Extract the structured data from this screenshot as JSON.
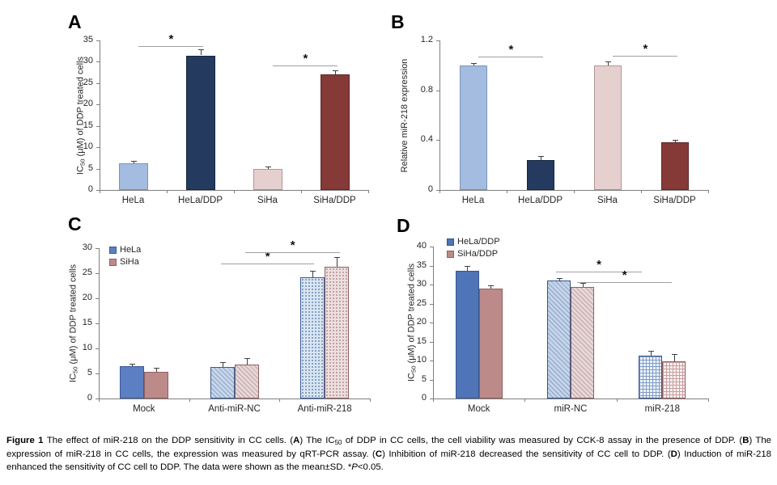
{
  "figure": {
    "caption_runs": [
      {
        "t": "Figure 1 ",
        "b": true
      },
      {
        "t": "The effect of miR-218 on the DDP sensitivity in CC cells. ("
      },
      {
        "t": "A",
        "b": true
      },
      {
        "t": ") The IC"
      },
      {
        "t": "50",
        "sub": true
      },
      {
        "t": " of DDP in CC cells, the cell viability was measured by CCK-8 assay in the presence of DDP. ("
      },
      {
        "t": "B",
        "b": true
      },
      {
        "t": ") The expression of miR-218 in CC cells, the expression was measured by qRT-PCR assay. ("
      },
      {
        "t": "C",
        "b": true
      },
      {
        "t": ") Inhibition of miR-218 decreased the sensitivity of CC cell to DDP. ("
      },
      {
        "t": "D",
        "b": true
      },
      {
        "t": ") Induction of miR-218 enhanced the sensitivity of CC cell to DDP. The data were shown as the mean±SD. "
      },
      {
        "t": "*"
      },
      {
        "t": "P",
        "i": true
      },
      {
        "t": "<0.05."
      }
    ]
  },
  "axis": {
    "line_color": "#7f7f7f",
    "text_color": "#262626",
    "error_color": "#3f3f3f",
    "sig_line_color": "#a0a0a0"
  },
  "chart_data": [
    {
      "panel": "A",
      "type": "bar",
      "ylabel_runs": [
        {
          "t": "IC"
        },
        {
          "t": "50",
          "sub": true
        },
        {
          "t": " (μM) of DDP treated cells"
        }
      ],
      "ylim": [
        0,
        35
      ],
      "yticks": [
        0,
        5,
        10,
        15,
        20,
        25,
        30,
        35
      ],
      "categories": [
        "HeLa",
        "HeLa/DDP",
        "SiHa",
        "SiHa/DDP"
      ],
      "series": [
        {
          "name": "",
          "values": [
            6.2,
            31.5,
            4.9,
            27.0
          ],
          "errors": [
            0.7,
            1.5,
            0.5,
            1.0
          ]
        }
      ],
      "category_styles": [
        {
          "solid": "#a3bce0",
          "border": "#7e94ba"
        },
        {
          "solid": "#243a5e",
          "border": "#17263f"
        },
        {
          "solid": "#e6cfcf",
          "border": "#b49595"
        },
        {
          "solid": "#853a38",
          "border": "#5e2826"
        }
      ],
      "patterns": [
        "solid",
        "solid",
        "solid",
        "solid"
      ],
      "significance": [
        {
          "x1": 0.146,
          "x2": 0.387,
          "y": 33.7,
          "label": "*"
        },
        {
          "x1": 0.646,
          "x2": 0.887,
          "y": 29.2,
          "label": "*"
        }
      ],
      "legend": false
    },
    {
      "panel": "B",
      "type": "bar",
      "ylabel_runs": [
        {
          "t": "Relative miR-218 expression"
        }
      ],
      "ylim": [
        0,
        1.2
      ],
      "yticks": [
        0,
        0.4,
        0.8,
        1.2
      ],
      "categories": [
        "HeLa",
        "HeLa/DDP",
        "SiHa",
        "SiHa/DDP"
      ],
      "series": [
        {
          "name": "",
          "values": [
            1.0,
            0.24,
            1.0,
            0.38
          ],
          "errors": [
            0.02,
            0.03,
            0.03,
            0.02
          ]
        }
      ],
      "category_styles": [
        {
          "solid": "#a3bce0",
          "border": "#7e94ba"
        },
        {
          "solid": "#243a5e",
          "border": "#17263f"
        },
        {
          "solid": "#e6cfcf",
          "border": "#b49595"
        },
        {
          "solid": "#853a38",
          "border": "#5e2826"
        }
      ],
      "patterns": [
        "solid",
        "solid",
        "solid",
        "solid"
      ],
      "significance": [
        {
          "x1": 0.146,
          "x2": 0.387,
          "y": 1.07,
          "label": "*"
        },
        {
          "x1": 0.646,
          "x2": 0.887,
          "y": 1.08,
          "label": "*"
        }
      ],
      "legend": false
    },
    {
      "panel": "C",
      "type": "bar",
      "ylabel_runs": [
        {
          "t": "IC"
        },
        {
          "t": "50",
          "sub": true
        },
        {
          "t": " (μM) of DDP treated cells"
        }
      ],
      "ylim": [
        0,
        30
      ],
      "yticks": [
        0,
        5,
        10,
        15,
        20,
        25,
        30
      ],
      "categories": [
        "Mock",
        "Anti-miR-NC",
        "Anti-miR-218"
      ],
      "series": [
        {
          "name": "HeLa",
          "values": [
            6.5,
            6.3,
            24.2
          ],
          "errors": [
            0.5,
            1.0,
            1.3
          ],
          "style": {
            "solid": "#5b7fc2",
            "border": "#3b5a94",
            "hatch": [
              "#c8d6ea",
              "#8da6c9"
            ],
            "dots": [
              "#dae5f1",
              "#7b9ac2"
            ],
            "grid": [
              "#eef3fa",
              "#7f9cc7"
            ]
          }
        },
        {
          "name": "SiHa",
          "values": [
            5.4,
            6.8,
            26.3
          ],
          "errors": [
            0.8,
            1.2,
            2.0
          ],
          "style": {
            "solid": "#bd8a8a",
            "border": "#8f5f5f",
            "hatch": [
              "#e6d7d7",
              "#c3a4a4"
            ],
            "dots": [
              "#eddfdf",
              "#c09b9b"
            ],
            "grid": [
              "#f8f0f0",
              "#c79f9f"
            ]
          }
        }
      ],
      "patterns": [
        "solid",
        "hatch",
        "dots"
      ],
      "significance": [
        {
          "x1": 0.451,
          "x2": 0.795,
          "y": 26.9,
          "label": "*"
        },
        {
          "x1": 0.541,
          "x2": 0.89,
          "y": 29.2,
          "label": "*"
        }
      ],
      "legend": true
    },
    {
      "panel": "D",
      "type": "bar",
      "ylabel_runs": [
        {
          "t": "IC"
        },
        {
          "t": "50",
          "sub": true
        },
        {
          "t": " (μM) of DDP treated cells"
        }
      ],
      "ylim": [
        0,
        40
      ],
      "yticks": [
        0,
        5,
        10,
        15,
        20,
        25,
        30,
        35,
        40
      ],
      "categories": [
        "Mock",
        "miR-NC",
        "miR-218"
      ],
      "series": [
        {
          "name": "HeLa/DDP",
          "values": [
            33.7,
            31.0,
            11.3
          ],
          "errors": [
            1.3,
            0.7,
            1.2
          ],
          "style": {
            "solid": "#4f74b8",
            "border": "#36548c",
            "hatch": [
              "#c5d4e8",
              "#8aa4c8"
            ],
            "dots": [
              "#dae5f1",
              "#7b9ac2"
            ],
            "grid": [
              "#eef3fa",
              "#7f9cc7"
            ]
          }
        },
        {
          "name": "SiHa/DDP",
          "values": [
            29.0,
            29.4,
            9.8
          ],
          "errors": [
            0.8,
            1.0,
            2.0
          ],
          "style": {
            "solid": "#bd8a8a",
            "border": "#8f5f5f",
            "hatch": [
              "#e6d7d7",
              "#c3a4a4"
            ],
            "dots": [
              "#eddfdf",
              "#c09b9b"
            ],
            "grid": [
              "#f8f0f0",
              "#c79f9f"
            ]
          }
        }
      ],
      "patterns": [
        "solid",
        "hatch",
        "grid"
      ],
      "significance": [
        {
          "x1": 0.446,
          "x2": 0.76,
          "y": 33.3,
          "label": "*"
        },
        {
          "x1": 0.524,
          "x2": 0.868,
          "y": 30.6,
          "label": "*"
        }
      ],
      "legend": true
    }
  ]
}
